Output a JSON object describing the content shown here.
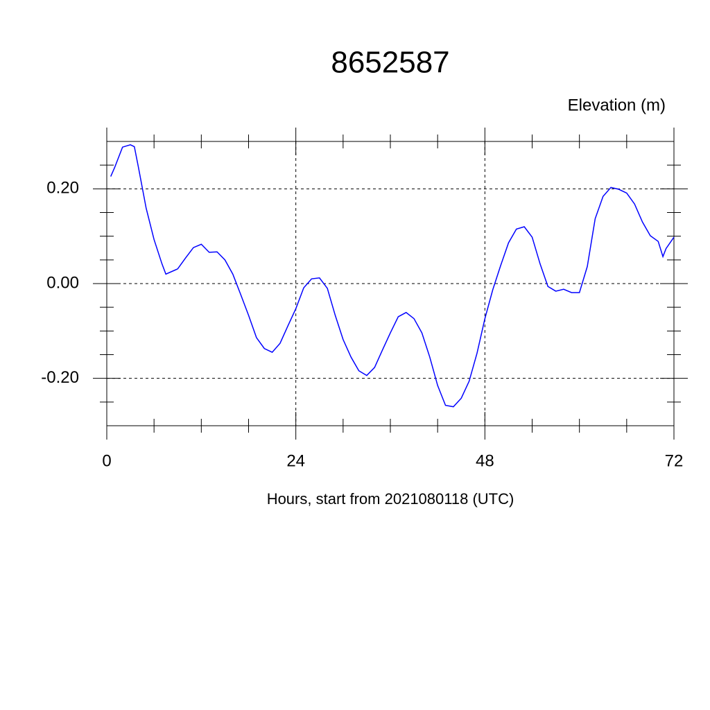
{
  "chart_data": {
    "type": "line",
    "title": "8652587",
    "y_label": "Elevation (m)",
    "x_label": "Hours, start from 2021080118 (UTC)",
    "x": [
      0.5,
      1,
      2,
      3,
      3.5,
      4,
      5,
      6,
      7,
      7.5,
      9,
      10,
      11,
      12,
      13,
      14,
      15,
      16,
      17,
      18,
      19,
      20,
      21,
      22,
      23,
      24,
      25,
      26,
      27,
      28,
      29,
      30,
      31,
      32,
      33,
      34,
      35,
      36,
      37,
      38,
      39,
      40,
      41,
      42,
      43,
      44,
      45,
      46,
      47,
      48,
      49,
      50,
      51,
      52,
      53,
      54,
      55,
      56,
      57,
      58,
      59,
      60,
      61,
      62,
      63,
      64,
      65,
      66,
      67,
      68,
      69,
      70,
      70.6,
      71,
      72
    ],
    "series": [
      {
        "name": "Elevation",
        "color": "#0000ff",
        "values": [
          0.226,
          0.245,
          0.288,
          0.293,
          0.289,
          0.247,
          0.159,
          0.093,
          0.042,
          0.02,
          0.031,
          0.054,
          0.076,
          0.083,
          0.066,
          0.067,
          0.05,
          0.02,
          -0.023,
          -0.067,
          -0.114,
          -0.137,
          -0.145,
          -0.126,
          -0.089,
          -0.053,
          -0.009,
          0.01,
          0.012,
          -0.01,
          -0.067,
          -0.118,
          -0.155,
          -0.184,
          -0.194,
          -0.177,
          -0.14,
          -0.104,
          -0.07,
          -0.061,
          -0.074,
          -0.104,
          -0.155,
          -0.215,
          -0.257,
          -0.26,
          -0.242,
          -0.206,
          -0.147,
          -0.074,
          -0.013,
          0.038,
          0.086,
          0.115,
          0.12,
          0.098,
          0.042,
          -0.006,
          -0.016,
          -0.012,
          -0.019,
          -0.019,
          0.036,
          0.137,
          0.184,
          0.203,
          0.199,
          0.191,
          0.168,
          0.13,
          0.101,
          0.089,
          0.057,
          0.074,
          0.098
        ]
      }
    ],
    "xlim": [
      0,
      72
    ],
    "xticks": [
      0,
      24,
      48,
      72
    ],
    "xminorticks": [
      6,
      12,
      18,
      30,
      36,
      42,
      54,
      60,
      66
    ],
    "ylim": [
      -0.3,
      0.3
    ],
    "yticks": [
      {
        "value": -0.2,
        "label": "-0.20"
      },
      {
        "value": 0,
        "label": "0.00"
      },
      {
        "value": 0.2,
        "label": "0.20"
      }
    ],
    "yminorticks": [
      -0.25,
      -0.15,
      -0.1,
      -0.05,
      0.05,
      0.1,
      0.15,
      0.25
    ],
    "grid": true
  }
}
